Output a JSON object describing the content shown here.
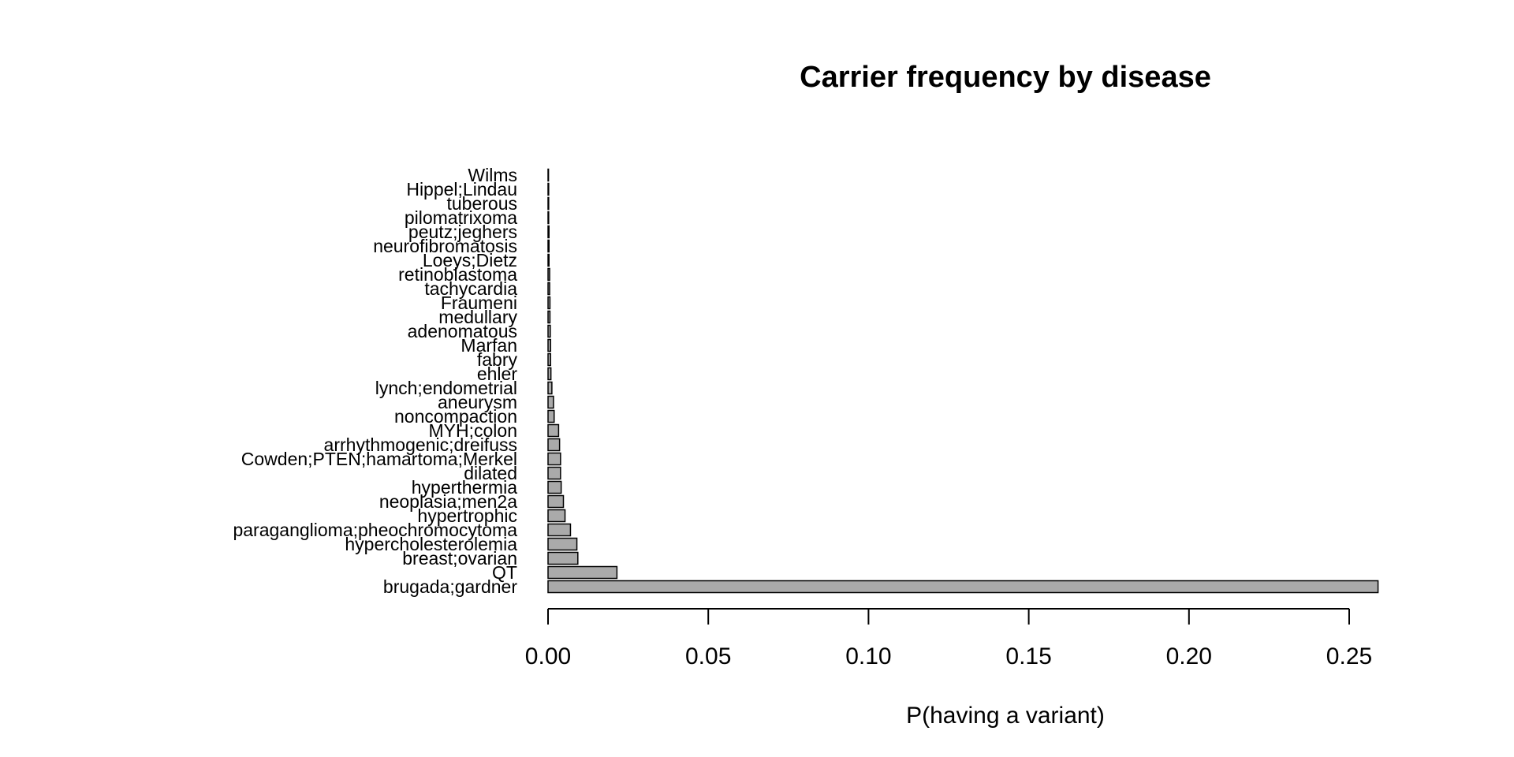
{
  "chart_data": {
    "type": "bar",
    "orientation": "horizontal",
    "title": "Carrier frequency by disease",
    "xlabel": "P(having a variant)",
    "ylabel": "",
    "xlim": [
      0,
      0.25
    ],
    "xticks": [
      "0.00",
      "0.05",
      "0.10",
      "0.15",
      "0.20",
      "0.25"
    ],
    "grid": false,
    "bar_color": "#aaaaaa",
    "categories": [
      "brugada;gardner",
      "QT",
      "breast;ovarian",
      "hypercholesterolemia",
      "paraganglioma;pheochromocytoma",
      "hypertrophic",
      "neoplasia;men2a",
      "hyperthermia",
      "dilated",
      "Cowden;PTEN;hamartoma;Merkel",
      "arrhythmogenic;dreifuss",
      "MYH;colon",
      "noncompaction",
      "aneurysm",
      "lynch;endometrial",
      "ehler",
      "fabry",
      "Marfan",
      "adenomatous",
      "medullary",
      "Fraumeni",
      "tachycardia",
      "retinoblastoma",
      "Loeys;Dietz",
      "neurofibromatosis",
      "peutz;jeghers",
      "pilomatrixoma",
      "tuberous",
      "Hippel;Lindau",
      "Wilms"
    ],
    "values": [
      0.259,
      0.0215,
      0.0093,
      0.009,
      0.007,
      0.0053,
      0.0048,
      0.0041,
      0.0039,
      0.0039,
      0.0036,
      0.0033,
      0.0019,
      0.0017,
      0.0012,
      0.0009,
      0.0008,
      0.0008,
      0.0007,
      0.0006,
      0.0006,
      0.0005,
      0.0005,
      0.0003,
      0.0003,
      0.0003,
      0.0002,
      0.0002,
      0.0002,
      0.0001
    ]
  }
}
